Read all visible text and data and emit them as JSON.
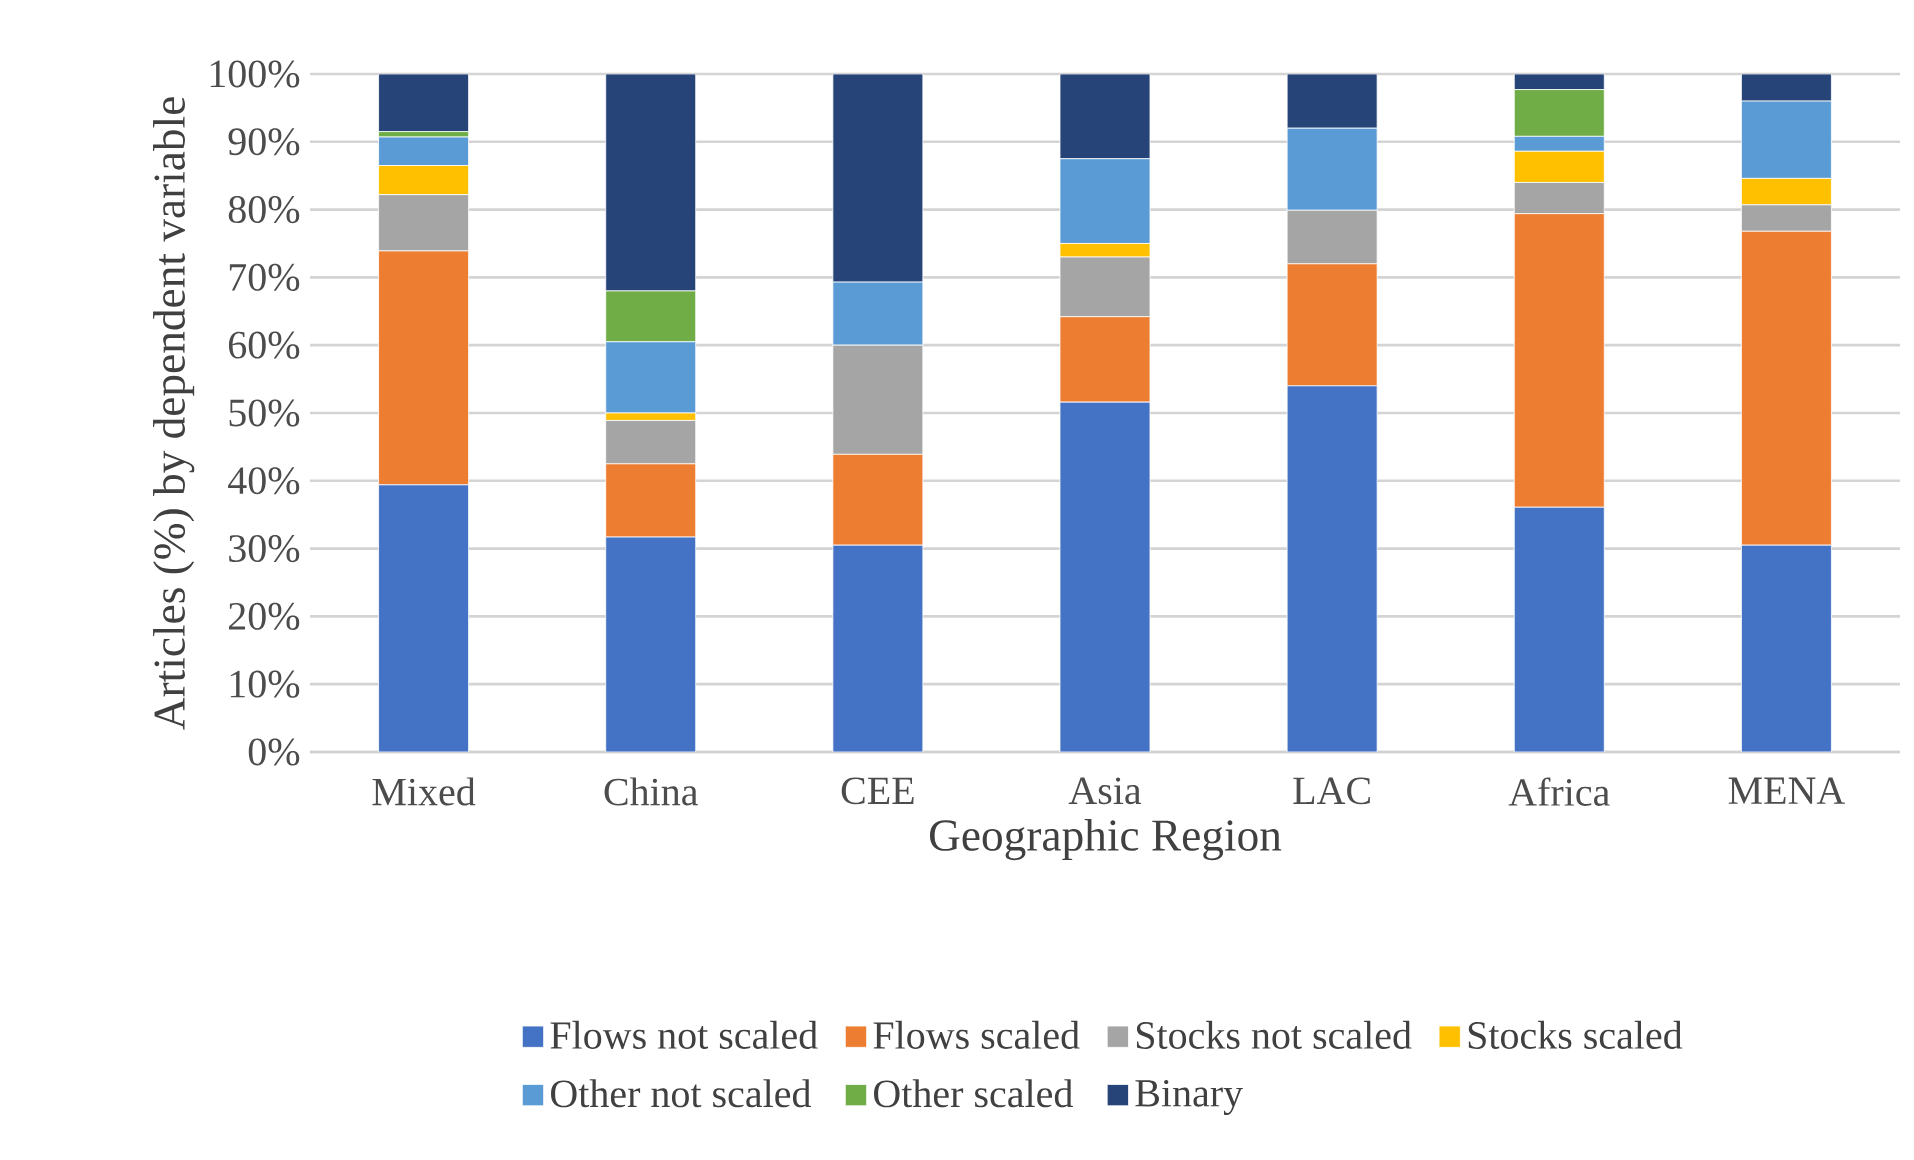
{
  "chart_data": {
    "type": "bar",
    "stacked": true,
    "categories": [
      "Mixed",
      "China",
      "CEE",
      "Asia",
      "LAC",
      "Africa",
      "MENA"
    ],
    "xlabel": "Geographic Region",
    "ylabel": "Articles (%) by  dependent variable",
    "ylim": [
      0,
      100
    ],
    "yticks": [
      {
        "value": 0,
        "label": "0%"
      },
      {
        "value": 10,
        "label": "10%"
      },
      {
        "value": 20,
        "label": "20%"
      },
      {
        "value": 30,
        "label": "30%"
      },
      {
        "value": 40,
        "label": "40%"
      },
      {
        "value": 50,
        "label": "50%"
      },
      {
        "value": 60,
        "label": "60%"
      },
      {
        "value": 70,
        "label": "70%"
      },
      {
        "value": 80,
        "label": "80%"
      },
      {
        "value": 90,
        "label": "90%"
      },
      {
        "value": 100,
        "label": "100%"
      }
    ],
    "grid": "y",
    "legend": "bottom",
    "series": [
      {
        "name": "Flows not scaled",
        "color": "#4472c4",
        "values": [
          39.4,
          31.7,
          30.5,
          51.6,
          54.0,
          36.1,
          30.5
        ]
      },
      {
        "name": "Flows scaled",
        "color": "#ed7d31",
        "values": [
          34.5,
          10.8,
          13.4,
          12.6,
          18.0,
          43.3,
          46.3
        ]
      },
      {
        "name": "Stocks not scaled",
        "color": "#a5a5a5",
        "values": [
          8.3,
          6.4,
          16.1,
          8.8,
          7.9,
          4.6,
          3.9
        ]
      },
      {
        "name": "Stocks scaled",
        "color": "#ffc000",
        "values": [
          4.3,
          1.1,
          0,
          2.0,
          0,
          4.6,
          3.9
        ]
      },
      {
        "name": "Other not scaled",
        "color": "#5b9bd5",
        "values": [
          4.2,
          10.5,
          9.3,
          12.5,
          12.1,
          2.2,
          11.4
        ]
      },
      {
        "name": "Other scaled",
        "color": "#70ad47",
        "values": [
          0.8,
          7.5,
          0,
          0,
          0,
          6.9,
          0
        ]
      },
      {
        "name": "Binary",
        "color": "#264478",
        "values": [
          8.5,
          32.0,
          30.7,
          12.5,
          8.0,
          2.3,
          4.0
        ]
      }
    ]
  }
}
